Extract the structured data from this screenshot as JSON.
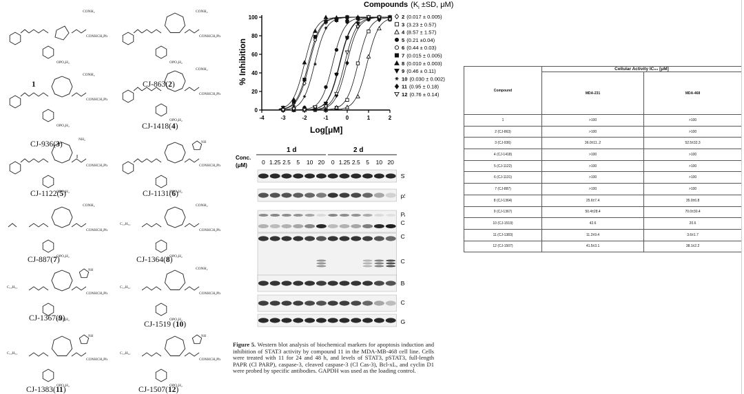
{
  "structures": {
    "compounds": [
      {
        "label": "1",
        "num": ""
      },
      {
        "label": "CJ-863(",
        "num": "2"
      },
      {
        "label": "CJ-936(",
        "num": "3"
      },
      {
        "label": "CJ-1418(",
        "num": "4"
      },
      {
        "label": "CJ-1122(",
        "num": "5"
      },
      {
        "label": "CJ-1131(",
        "num": "6"
      },
      {
        "label": "CJ-887(",
        "num": "7"
      },
      {
        "label": "CJ-1364(",
        "num": "8"
      },
      {
        "label": "CJ-1367(",
        "num": "9"
      },
      {
        "label": "CJ-1519 (",
        "num": "10"
      },
      {
        "label": "CJ-1383(",
        "num": "11"
      },
      {
        "label": "CJ-1507(",
        "num": "12"
      }
    ],
    "groups": {
      "conh2": "CONH₂",
      "conhch2ph": "CONHCH₂Ph",
      "opo3h2": "OPO₃H₂",
      "nh2": "NH₂",
      "nh": "NH",
      "n": "N",
      "c15h31": "C₁₅H₃₁"
    }
  },
  "chart_data": {
    "type": "line",
    "title": "Compounds",
    "title_suffix": "(K",
    "title_sub": "i",
    "title_tail": " ±SD, μM)",
    "xlabel": "Log[μM]",
    "ylabel": "% Inhibition",
    "xlim": [
      -4,
      2
    ],
    "ylim": [
      0,
      100
    ],
    "xticks": [
      -4,
      -3,
      -2,
      -1,
      0,
      1,
      2
    ],
    "yticks": [
      0,
      20,
      40,
      60,
      80,
      100
    ],
    "series": [
      {
        "name": "2",
        "value": "(0.017 ± 0.005)",
        "marker": "diamond-open",
        "logKi": -1.77
      },
      {
        "name": "3",
        "value": "(3.23 ± 0.57)",
        "marker": "square-open",
        "logKi": 0.51
      },
      {
        "name": "4",
        "value": "(8.57 ± 1.57)",
        "marker": "triangle-open",
        "logKi": 0.93
      },
      {
        "name": "5",
        "value": "(0.21 ±0.04)",
        "marker": "circle-filled",
        "logKi": -0.68
      },
      {
        "name": "6",
        "value": "(0.44 ± 0.03)",
        "marker": "circle-open",
        "logKi": -0.36
      },
      {
        "name": "7",
        "value": "(0.015 ± 0.005)",
        "marker": "square-filled",
        "logKi": -1.82
      },
      {
        "name": "8",
        "value": "(0.010 ± 0.003)",
        "marker": "triangle-filled",
        "logKi": -2.0
      },
      {
        "name": "9",
        "value": "(0.46 ± 0.11)",
        "marker": "triangle-down-filled",
        "logKi": -0.34
      },
      {
        "name": "10",
        "value": "(0.030 ± 0.002)",
        "marker": "star",
        "logKi": -1.52
      },
      {
        "name": "11",
        "value": "(0.95 ± 0.18)",
        "marker": "diamond-filled",
        "logKi": -0.02
      },
      {
        "name": "12",
        "value": "(0.76 ± 0.14)",
        "marker": "triangle-down-open",
        "logKi": -0.12
      }
    ]
  },
  "blot": {
    "conc_label": "Conc.",
    "conc_unit": "(μM)",
    "day1": "1 d",
    "day2": "2 d",
    "lanes": [
      "0",
      "1.25",
      "2.5",
      "5",
      "10",
      "20",
      "0",
      "1.25",
      "2.5",
      "5",
      "10",
      "20"
    ],
    "bands": [
      {
        "label": "STAT3"
      },
      {
        "label": "pSTAT3"
      },
      {
        "label": "PARP",
        "label2": "Cl PARP"
      },
      {
        "label": "Cas-3"
      },
      {
        "label": "Cl Cas-3"
      },
      {
        "label": "Bcl-xL"
      },
      {
        "label": "Cyclin D1"
      },
      {
        "label": "GAPDH"
      }
    ]
  },
  "caption": {
    "figure": "Figure 5.",
    "text": "Western blot analysis of biochemical markers for apoptosis induction and inhibition of STAT3 activity by compound 11 in the MDA-MB-468 cell line. Cells were treated with 11 for 24 and 48 h, and levels of STAT3, pSTAT3, full-length PAPR (Cl PARP), caspase-3, cleaved caspase-3 (Cl Cas-3), Bcl-xL, and cyclin D1 were probed by specific antibodies. GAPDH was used as the loading control."
  },
  "table": {
    "caption": "Cellular Activity  IC₅₀ [μM]",
    "col_compound": "Compound",
    "col_a": "MDA-231",
    "col_b": "MDA-468",
    "rows": [
      {
        "compound": "1",
        "a": ">100",
        "b": ">100"
      },
      {
        "compound": "2 (CJ-863)",
        "a": ">100",
        "b": ">100"
      },
      {
        "compound": "3 (CJ-936)",
        "a": "36.0±11..2",
        "b": "52.5±32.3"
      },
      {
        "compound": "4 (CJ-1418)",
        "a": ">100",
        "b": ">100"
      },
      {
        "compound": "5 (CJ-1122)",
        "a": ">100",
        "b": ">100"
      },
      {
        "compound": "6 (CJ-1131)",
        "a": ">100",
        "b": ">100"
      },
      {
        "compound": "7 (CJ-887)",
        "a": ">100",
        "b": ">100"
      },
      {
        "compound": "8 (CJ-1364)",
        "a": "25.6±7.4",
        "b": "35.0±6.8"
      },
      {
        "compound": "9 (CJ-1367)",
        "a": "50.4±28.4",
        "b": "70.0±30.4"
      },
      {
        "compound": "10 (CJ-1519)",
        "a": "42.6",
        "b": "20.6"
      },
      {
        "compound": "11 (CJ-1383)",
        "a": "11.2±9.4",
        "b": "3.6±1.7"
      },
      {
        "compound": "12 (CJ-1507)",
        "a": "41.5±3.1",
        "b": "38.1±2.2"
      }
    ]
  }
}
